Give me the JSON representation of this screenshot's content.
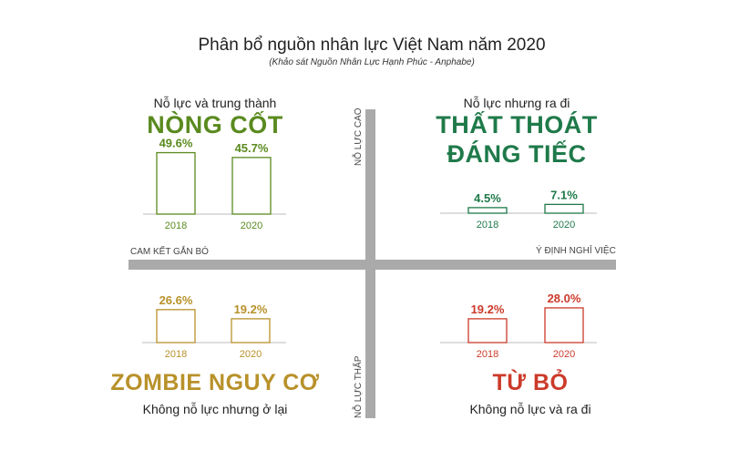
{
  "header": {
    "title": "Phân bổ nguồn nhân lực Việt Nam năm 2020",
    "subtitle": "(Khảo sát Nguồn Nhân Lực Hạnh Phúc - Anphabe)"
  },
  "axes": {
    "top": "NỖ LỰC CAO",
    "bottom": "NỖ LỰC THẤP",
    "left": "CAM KẾT GẮN BÓ",
    "right": "Ý ĐỊNH NGHỈ VIỆC"
  },
  "quadrants": {
    "core": {
      "subtitle": "Nỗ lực và trung thành",
      "name": "NÒNG CỐT",
      "color": "#5a8a1f"
    },
    "loss": {
      "subtitle": "Nỗ lực nhưng ra đi",
      "name_line1": "THẤT THOÁT",
      "name_line2": "ĐÁNG TIẾC",
      "color": "#1f7a4a"
    },
    "zombie": {
      "subtitle": "Không nỗ lực nhưng ở lại",
      "name": "ZOMBIE NGUY CƠ",
      "color": "#b8912a"
    },
    "quit": {
      "subtitle": "Không nỗ lực và ra đi",
      "name": "TỪ BỎ",
      "color": "#cc3a2a"
    }
  },
  "chart_data": [
    {
      "type": "bar",
      "quadrant": "core",
      "categories": [
        "2018",
        "2020"
      ],
      "values": [
        49.6,
        45.7
      ],
      "labels": [
        "49.6%",
        "45.7%"
      ]
    },
    {
      "type": "bar",
      "quadrant": "loss",
      "categories": [
        "2018",
        "2020"
      ],
      "values": [
        4.5,
        7.1
      ],
      "labels": [
        "4.5%",
        "7.1%"
      ]
    },
    {
      "type": "bar",
      "quadrant": "zombie",
      "categories": [
        "2018",
        "2020"
      ],
      "values": [
        26.6,
        19.2
      ],
      "labels": [
        "26.6%",
        "19.2%"
      ]
    },
    {
      "type": "bar",
      "quadrant": "quit",
      "categories": [
        "2018",
        "2020"
      ],
      "values": [
        19.2,
        28.0
      ],
      "labels": [
        "19.2%",
        "28.0%"
      ]
    }
  ]
}
